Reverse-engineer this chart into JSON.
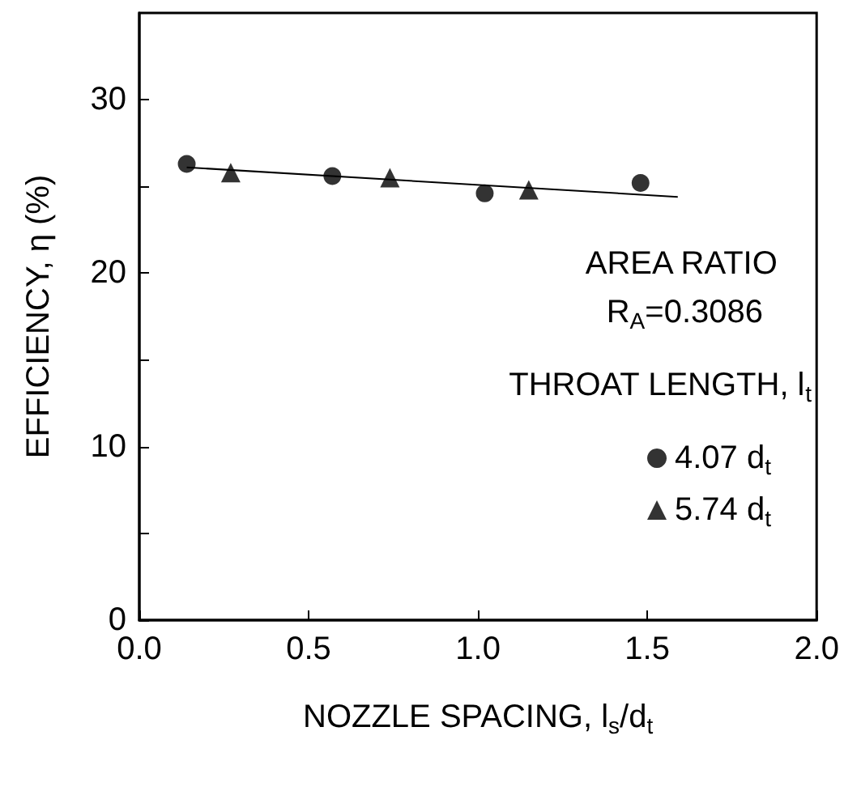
{
  "chart_data": {
    "type": "scatter",
    "xlabel": "NOZZLE SPACING, l$_{s}$/d$_{t}$",
    "ylabel": "EFFICIENCY, η (%)",
    "legend_title": "THROAT LENGTH, l$_{t}$",
    "annotations": [
      "AREA RATIO",
      "R$_{A}$=0.3086"
    ],
    "series": [
      {
        "name": "4.07 d$_{t}$",
        "color": "#000000",
        "marker": "circle",
        "x": [
          0.14,
          0.57,
          1.02,
          1.48
        ],
        "values": [
          26.3,
          25.6,
          24.6,
          25.2
        ]
      },
      {
        "name": "5.74 d$_{t}$",
        "color": "#000000",
        "marker": "triangle",
        "x": [
          0.27,
          0.74,
          1.15
        ],
        "values": [
          25.8,
          25.5,
          24.8
        ]
      },
      {
        "type": "line",
        "color": "#000000",
        "marker": "none",
        "x": [
          0.14,
          1.59
        ],
        "values": [
          26.1,
          24.4
        ]
      }
    ],
    "xlim": [
      0,
      2.0
    ],
    "xticks": [
      {
        "value": 0,
        "label": "0.0"
      },
      0.5,
      {
        "value": 1,
        "label": "1.0"
      },
      1.5,
      {
        "value": 2,
        "label": "2.0"
      }
    ],
    "ylim": [
      0,
      35
    ],
    "yticks": [
      0,
      {
        "value": 5,
        "label": null
      },
      10,
      {
        "value": 15,
        "label": null
      },
      20,
      {
        "value": 25,
        "label": null
      },
      30
    ],
    "grid": false,
    "legend": "right"
  }
}
